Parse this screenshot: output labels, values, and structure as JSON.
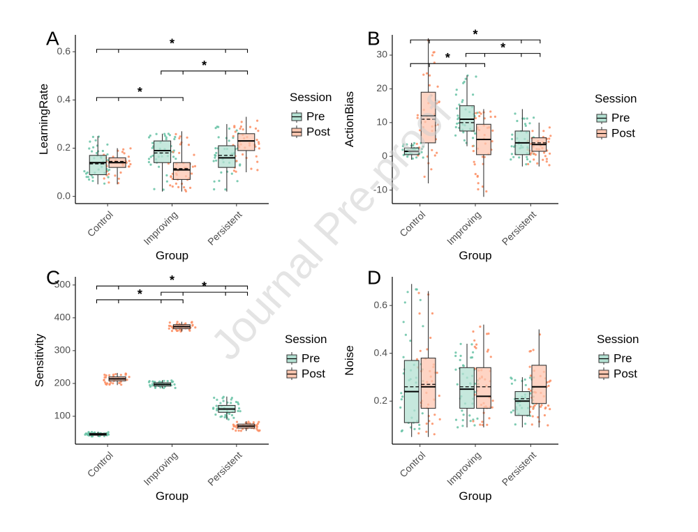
{
  "watermark": "Journal Pre-proof",
  "colors": {
    "pre": "#66c2a5",
    "post": "#fc8d62",
    "pre_fill": "#b3e0d2",
    "post_fill": "#fdc6b0"
  },
  "legend": {
    "title": "Session",
    "labels": [
      "Pre",
      "Post"
    ]
  },
  "chart_data": [
    {
      "panel": "A",
      "type": "box",
      "xlabel": "Group",
      "ylabel": "LearningRate",
      "categories": [
        "Control",
        "Improving",
        "Persistent"
      ],
      "ylim": [
        -0.03,
        0.67
      ],
      "yticks": [
        0.0,
        0.2,
        0.4,
        0.6
      ],
      "ytick_labels": [
        "0.0",
        "0.2",
        "0.4",
        "0.6"
      ],
      "series": [
        {
          "name": "Pre",
          "boxes": [
            {
              "whislo": 0.05,
              "q1": 0.09,
              "med": 0.14,
              "q3": 0.17,
              "whishi": 0.25,
              "mean": 0.135,
              "n": 38
            },
            {
              "whislo": 0.02,
              "q1": 0.14,
              "med": 0.19,
              "q3": 0.23,
              "whishi": 0.26,
              "mean": 0.18,
              "n": 40
            },
            {
              "whislo": 0.02,
              "q1": 0.12,
              "med": 0.16,
              "q3": 0.21,
              "whishi": 0.3,
              "mean": 0.17,
              "n": 40
            }
          ]
        },
        {
          "name": "Post",
          "boxes": [
            {
              "whislo": 0.05,
              "q1": 0.12,
              "med": 0.14,
              "q3": 0.16,
              "whishi": 0.2,
              "mean": 0.145,
              "n": 38
            },
            {
              "whislo": 0.02,
              "q1": 0.07,
              "med": 0.11,
              "q3": 0.14,
              "whishi": 0.27,
              "mean": 0.115,
              "n": 40
            },
            {
              "whislo": 0.1,
              "q1": 0.19,
              "med": 0.23,
              "q3": 0.26,
              "whishi": 0.33,
              "mean": 0.23,
              "n": 40
            }
          ]
        }
      ],
      "brackets": [
        {
          "from": 0,
          "to": 1,
          "y": 0.41,
          "label": "*"
        },
        {
          "from": 1,
          "to": 2,
          "y": 0.52,
          "label": "*"
        },
        {
          "from": 0,
          "to": 2,
          "y": 0.61,
          "label": "*"
        }
      ]
    },
    {
      "panel": "B",
      "type": "box",
      "xlabel": "Group",
      "ylabel": "ActionBias",
      "categories": [
        "Control",
        "Improving",
        "Persistent"
      ],
      "ylim": [
        -14,
        36
      ],
      "yticks": [
        -10,
        0,
        10,
        20,
        30
      ],
      "ytick_labels": [
        "-10",
        "0",
        "10",
        "20",
        "30"
      ],
      "series": [
        {
          "name": "Pre",
          "boxes": [
            {
              "whislo": -1,
              "q1": 0.5,
              "med": 1.5,
              "q3": 2.5,
              "whishi": 4,
              "mean": 1.5,
              "n": 38
            },
            {
              "whislo": 3,
              "q1": 7.5,
              "med": 11,
              "q3": 15,
              "whishi": 24,
              "mean": 10,
              "n": 40
            },
            {
              "whislo": -3,
              "q1": 0.5,
              "med": 4,
              "q3": 7.5,
              "whishi": 14,
              "mean": 4,
              "n": 40
            }
          ]
        },
        {
          "name": "Post",
          "boxes": [
            {
              "whislo": -8,
              "q1": 4,
              "med": 12,
              "q3": 19,
              "whishi": 35,
              "mean": 11,
              "n": 38
            },
            {
              "whislo": -12,
              "q1": 0.5,
              "med": 5,
              "q3": 9.5,
              "whishi": 14,
              "mean": 5,
              "n": 40
            },
            {
              "whislo": -3,
              "q1": 1.5,
              "med": 3.5,
              "q3": 5.5,
              "whishi": 10,
              "mean": 4,
              "n": 40
            }
          ]
        }
      ],
      "brackets": [
        {
          "from": 0,
          "to": 1,
          "y": 27.5,
          "label": "*"
        },
        {
          "from": 1,
          "to": 2,
          "y": 30.5,
          "label": "*"
        },
        {
          "from": 0,
          "to": 2,
          "y": 34.5,
          "label": "*"
        }
      ]
    },
    {
      "panel": "C",
      "type": "box",
      "xlabel": "Group",
      "ylabel": "Sensitivity",
      "categories": [
        "Control",
        "Improving",
        "Persistent"
      ],
      "ylim": [
        15,
        525
      ],
      "yticks": [
        100,
        200,
        300,
        400,
        500
      ],
      "ytick_labels": [
        "100",
        "200",
        "300",
        "400",
        "500"
      ],
      "series": [
        {
          "name": "Pre",
          "boxes": [
            {
              "whislo": 38,
              "q1": 42,
              "med": 45,
              "q3": 48,
              "whishi": 52,
              "mean": 45,
              "n": 38
            },
            {
              "whislo": 185,
              "q1": 192,
              "med": 197,
              "q3": 202,
              "whishi": 210,
              "mean": 197,
              "n": 40
            },
            {
              "whislo": 90,
              "q1": 112,
              "med": 122,
              "q3": 133,
              "whishi": 160,
              "mean": 122,
              "n": 40
            }
          ]
        },
        {
          "name": "Post",
          "boxes": [
            {
              "whislo": 195,
              "q1": 208,
              "med": 214,
              "q3": 220,
              "whishi": 232,
              "mean": 214,
              "n": 38
            },
            {
              "whislo": 358,
              "q1": 367,
              "med": 373,
              "q3": 379,
              "whishi": 388,
              "mean": 373,
              "n": 40
            },
            {
              "whislo": 55,
              "q1": 64,
              "med": 70,
              "q3": 76,
              "whishi": 85,
              "mean": 70,
              "n": 40
            }
          ]
        }
      ],
      "brackets": [
        {
          "from": 0,
          "to": 1,
          "y": 455,
          "label": "*"
        },
        {
          "from": 1,
          "to": 2,
          "y": 478,
          "label": "*"
        },
        {
          "from": 0,
          "to": 2,
          "y": 497,
          "label": "*"
        }
      ]
    },
    {
      "panel": "D",
      "type": "box",
      "xlabel": "Group",
      "ylabel": "Noise",
      "categories": [
        "Control",
        "Improving",
        "Persistent"
      ],
      "ylim": [
        0.02,
        0.72
      ],
      "yticks": [
        0.2,
        0.4,
        0.6
      ],
      "ytick_labels": [
        "0.2",
        "0.4",
        "0.6"
      ],
      "series": [
        {
          "name": "Pre",
          "boxes": [
            {
              "whislo": 0.05,
              "q1": 0.11,
              "med": 0.24,
              "q3": 0.37,
              "whishi": 0.69,
              "mean": 0.26,
              "n": 38
            },
            {
              "whislo": 0.09,
              "q1": 0.17,
              "med": 0.25,
              "q3": 0.34,
              "whishi": 0.44,
              "mean": 0.26,
              "n": 40
            },
            {
              "whislo": 0.09,
              "q1": 0.14,
              "med": 0.2,
              "q3": 0.24,
              "whishi": 0.3,
              "mean": 0.21,
              "n": 40
            }
          ]
        },
        {
          "name": "Post",
          "boxes": [
            {
              "whislo": 0.05,
              "q1": 0.17,
              "med": 0.26,
              "q3": 0.38,
              "whishi": 0.66,
              "mean": 0.27,
              "n": 38
            },
            {
              "whislo": 0.09,
              "q1": 0.17,
              "med": 0.22,
              "q3": 0.34,
              "whishi": 0.52,
              "mean": 0.26,
              "n": 40
            },
            {
              "whislo": 0.09,
              "q1": 0.19,
              "med": 0.26,
              "q3": 0.35,
              "whishi": 0.5,
              "mean": 0.26,
              "n": 40
            }
          ]
        }
      ],
      "brackets": []
    }
  ]
}
